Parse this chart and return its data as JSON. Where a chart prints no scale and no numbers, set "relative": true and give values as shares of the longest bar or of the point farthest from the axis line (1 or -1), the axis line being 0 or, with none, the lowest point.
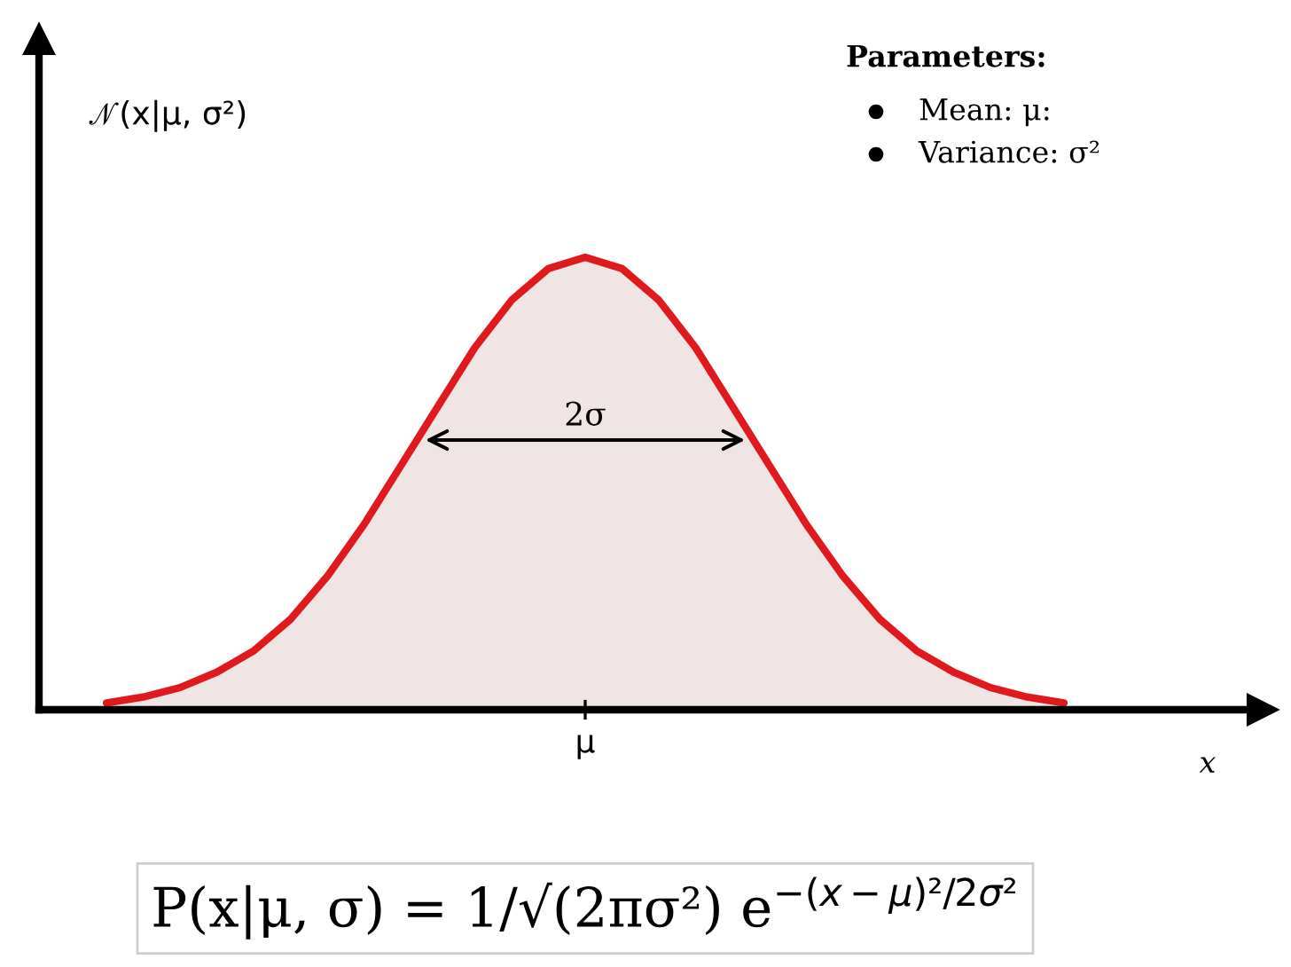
{
  "chart_data": {
    "type": "area",
    "relative": true,
    "xlabel": "x",
    "ylabel": "𝒩(x|μ, σ²)",
    "categories": [
      null,
      null,
      null,
      null,
      null,
      null,
      null,
      null,
      null,
      null,
      null,
      null,
      null,
      null,
      null,
      null,
      null,
      null,
      null,
      null,
      null,
      null,
      null,
      null,
      null,
      null,
      null
    ],
    "series": [
      {
        "color": "#e0191c",
        "values": [
          0.015,
          0.028,
          0.049,
          0.083,
          0.13,
          0.2,
          0.295,
          0.41,
          0.54,
          0.67,
          0.8,
          0.905,
          0.975,
          1,
          0.975,
          0.905,
          0.8,
          0.67,
          0.54,
          0.41,
          0.295,
          0.2,
          0.13,
          0.083,
          0.049,
          0.028,
          0.015
        ]
      }
    ],
    "annotations": [
      "μ",
      "2σ",
      "Parameters:",
      "Mean: μ:",
      "Variance: σ²",
      "P(x|μ, σ) = 1/√(2πσ²) e$^{−(x−μ)²/2σ²}$"
    ],
    "grid": false,
    "legend": false
  }
}
